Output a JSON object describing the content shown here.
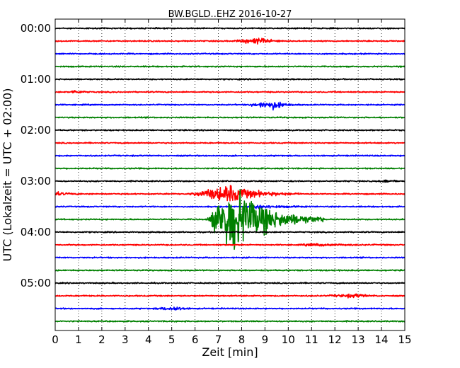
{
  "chart_data": {
    "type": "line",
    "title": "BW.BGLD..EHZ 2016-10-27",
    "xlabel": "Zeit  [min]",
    "ylabel": "UTC (Lokalzeit = UTC + 02:00)",
    "xlim": [
      0,
      15
    ],
    "x_ticks": [
      "0",
      "1",
      "2",
      "3",
      "4",
      "5",
      "6",
      "7",
      "8",
      "9",
      "10",
      "11",
      "12",
      "13",
      "14",
      "15"
    ],
    "y_ticks": [
      "00:00",
      "01:00",
      "02:00",
      "03:00",
      "04:00",
      "05:00"
    ],
    "grid": "vertical-dotted",
    "trace_colors": [
      "#000000",
      "#ff0000",
      "#0000ff",
      "#008000"
    ],
    "trace_count": 24,
    "trace_interval_minutes": 15,
    "events": [
      {
        "trace": 1,
        "start_min": 7.6,
        "peak_min": 8.8,
        "end_min": 10.0,
        "amplitude": 0.55
      },
      {
        "trace": 5,
        "start_min": 0.5,
        "peak_min": 0.9,
        "end_min": 1.6,
        "amplitude": 0.3
      },
      {
        "trace": 6,
        "start_min": 8.2,
        "peak_min": 9.4,
        "end_min": 10.5,
        "amplitude": 0.75
      },
      {
        "trace": 12,
        "start_min": 13.8,
        "peak_min": 14.3,
        "end_min": 15.0,
        "amplitude": 0.25
      },
      {
        "trace": 13,
        "start_min": -0.2,
        "peak_min": 0.1,
        "end_min": 1.2,
        "amplitude": 0.3
      },
      {
        "trace": 13,
        "start_min": 5.7,
        "peak_min": 7.5,
        "end_min": 10.5,
        "amplitude": 1.6
      },
      {
        "trace": 14,
        "start_min": 8.0,
        "peak_min": 8.8,
        "end_min": 11.0,
        "amplitude": 0.35
      },
      {
        "trace": 15,
        "start_min": 6.5,
        "peak_min": 7.6,
        "end_min": 11.5,
        "amplitude": 7.0
      },
      {
        "trace": 17,
        "start_min": 10.5,
        "peak_min": 11.0,
        "end_min": 14.5,
        "amplitude": 0.2
      },
      {
        "trace": 21,
        "start_min": 11.5,
        "peak_min": 13.0,
        "end_min": 14.0,
        "amplitude": 0.3
      },
      {
        "trace": 22,
        "start_min": 4.2,
        "peak_min": 5.2,
        "end_min": 6.0,
        "amplitude": 0.35
      }
    ]
  }
}
